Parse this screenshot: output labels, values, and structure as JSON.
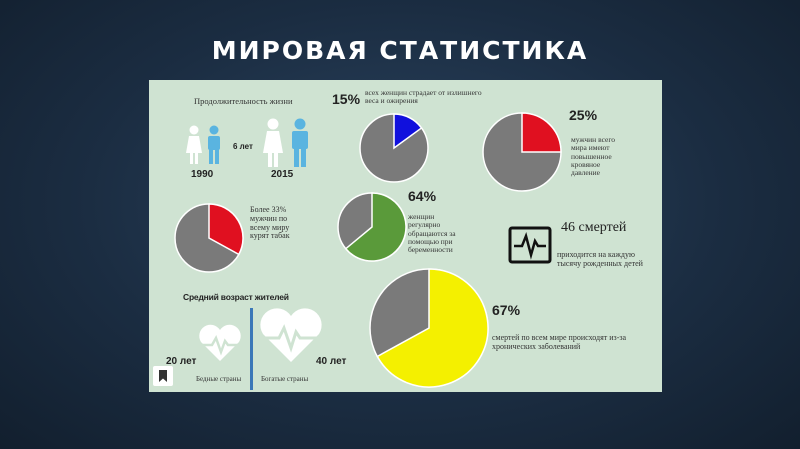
{
  "slide": {
    "title": "МИРОВАЯ СТАТИСТИКА"
  },
  "life": {
    "heading": "Продолжительность жизни",
    "delta": "6 лет",
    "year1": "1990",
    "year2": "2015"
  },
  "pie_women_underweight": {
    "percent": "15%",
    "caption": "всех женщин страдает от излишнего веса и ожирения",
    "value": 15,
    "color": "#1010dd"
  },
  "pie_men_pressure": {
    "percent": "25%",
    "caption": "мужчин всего мира имеют повышенное кровяное давление",
    "value": 25,
    "color": "#e01020"
  },
  "pie_smoking": {
    "caption": "Более 33% мужчин по всему миру курят табак",
    "value": 33,
    "color": "#e01020"
  },
  "pie_pregnancy": {
    "percent": "64%",
    "caption": "женщин регулярно обращаются за помощью при беременности",
    "value": 64,
    "color": "#5a9a3a"
  },
  "deaths": {
    "title": "46 смертей",
    "caption": "приходится на каждую тысячу рожденных детей"
  },
  "age": {
    "heading": "Средний возраст жителей",
    "poor_value": "20 лет",
    "poor_label": "Бедные страны",
    "rich_value": "40 лет",
    "rich_label": "Богатые страны"
  },
  "pie_chronic": {
    "percent": "67%",
    "caption": "смертей по всем мире происходят из-за хронических заболеваний",
    "value": 67,
    "color": "#f4f000"
  },
  "colors": {
    "pie_gray": "#7a7a7a",
    "female": "#ffffff",
    "male": "#5ab4e0"
  }
}
